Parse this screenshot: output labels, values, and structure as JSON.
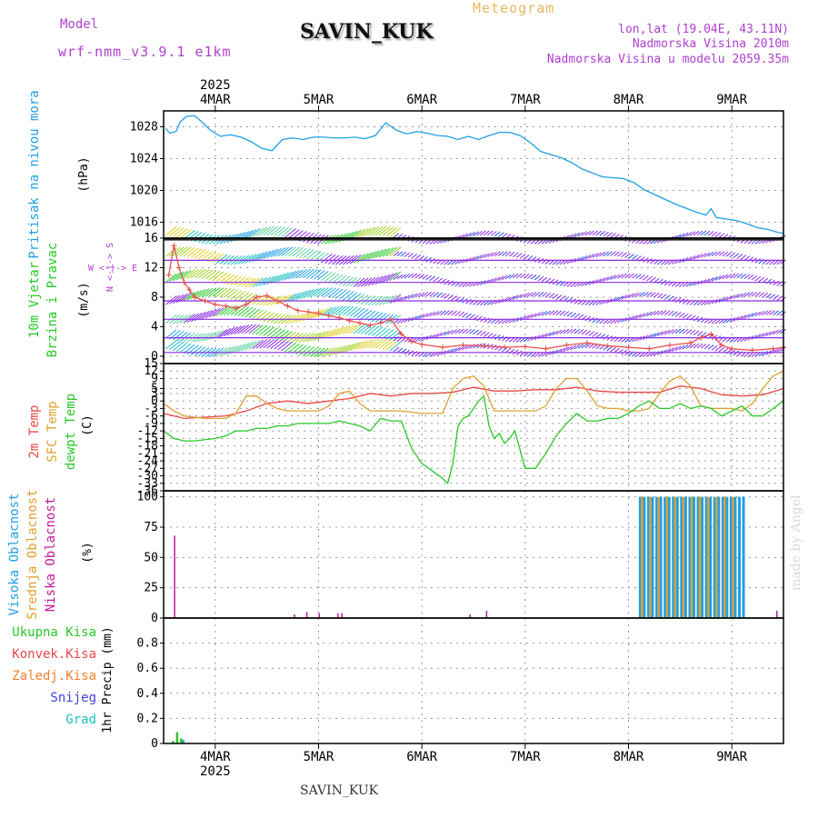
{
  "header": {
    "model_label": "Model",
    "model_name": "wrf-nmm_v3.9.1 e1km",
    "station": "SAVIN_KUK",
    "title": "Meteogram",
    "coords": "lon,lat (19.04E, 43.11N)",
    "elevation": "Nadmorska Visina 2010m",
    "model_elevation": "Nadmorska Visina u modelu 2059.35m",
    "credit": "made by Angel",
    "footer_station": "SAVIN_KUK"
  },
  "colors": {
    "pressure": "#1ea0e6",
    "t2m": "#e84848",
    "sfc": "#e0a030",
    "dewpt": "#28c828",
    "cloud_high": "#1ea0e6",
    "cloud_mid": "#e0a030",
    "cloud_low": "#c0189a",
    "magenta_text": "#b040d0",
    "meteogram_title": "#e8b860",
    "wind_purple": "#8a2be2",
    "wind_blue": "#2050e0",
    "wind_gust": "#e84848",
    "precip_total": "#28c828",
    "precip_conv": "#e84848",
    "precip_frozen": "#f08030",
    "precip_snow": "#4040e0",
    "precip_grad": "#20c0c0"
  },
  "time_axis": {
    "year": "2025",
    "ticks": [
      "4MAR",
      "5MAR",
      "6MAR",
      "7MAR",
      "8MAR",
      "9MAR"
    ]
  },
  "panels": {
    "pressure": {
      "label": "Pritisak na nivou mora",
      "unit": "(hPa)"
    },
    "wind": {
      "label1": "10m Vjetar",
      "label2": "Brzina i Pravac",
      "unit": "(m/s)",
      "compass": "W <-|-> E",
      "compass_v": "N <-|-> S"
    },
    "temp": {
      "label1": "2m Temp",
      "label2": "SFC Temp",
      "label3": "dewpt Temp",
      "unit": "(C)"
    },
    "cloud": {
      "label1": "Visoka Oblacnost",
      "label2": "Srednja Oblacnost",
      "label3": "Niska Oblacnost",
      "unit": "(%)"
    },
    "precip": {
      "items": [
        "Ukupna Kisa",
        "Konvek.Kisa",
        "Zaledj.Kisa",
        "Snijeg",
        "Grad"
      ],
      "unit": "1hr Precip (mm)"
    }
  },
  "chart_data": [
    {
      "type": "line",
      "name": "pressure",
      "ylabel": "Pritisak na nivou mora (hPa)",
      "ylim": [
        1014,
        1030
      ],
      "yticks": [
        1016,
        1020,
        1024,
        1028
      ],
      "xlim": [
        3.5,
        9.5
      ],
      "grid": true,
      "series": [
        {
          "x": [
            3.52,
            3.56,
            3.62,
            3.66,
            3.72,
            3.8,
            3.88,
            3.95,
            4.05,
            4.15,
            4.25,
            4.35,
            4.45,
            4.55,
            4.65,
            4.75,
            4.85,
            4.95,
            5.05,
            5.15,
            5.25,
            5.35,
            5.45,
            5.55,
            5.65,
            5.75,
            5.85,
            5.95,
            6.05,
            6.15,
            6.25,
            6.35,
            6.45,
            6.55,
            6.65,
            6.75,
            6.85,
            6.95,
            7.05,
            7.15,
            7.25,
            7.35,
            7.45,
            7.55,
            7.65,
            7.75,
            7.85,
            7.95,
            8.05,
            8.15,
            8.25,
            8.35,
            8.45,
            8.55,
            8.65,
            8.75,
            8.8,
            8.85,
            8.95,
            9.05,
            9.15,
            9.25,
            9.35,
            9.45,
            9.5
          ],
          "values": [
            1027.8,
            1027.2,
            1027.4,
            1028.6,
            1029.3,
            1029.4,
            1028.5,
            1027.6,
            1026.8,
            1027.0,
            1026.7,
            1026.1,
            1025.3,
            1025.0,
            1026.4,
            1026.6,
            1026.4,
            1026.7,
            1026.7,
            1026.6,
            1026.6,
            1026.7,
            1026.5,
            1026.9,
            1028.5,
            1027.6,
            1027.1,
            1027.4,
            1027.2,
            1026.9,
            1026.8,
            1026.4,
            1026.8,
            1026.4,
            1026.9,
            1027.3,
            1027.3,
            1026.9,
            1026.0,
            1024.9,
            1024.5,
            1024.1,
            1023.5,
            1022.7,
            1022.2,
            1021.7,
            1021.6,
            1021.5,
            1021.0,
            1020.1,
            1019.5,
            1018.9,
            1018.3,
            1017.8,
            1017.3,
            1016.9,
            1017.7,
            1016.6,
            1016.4,
            1016.2,
            1015.8,
            1015.3,
            1015.1,
            1014.7,
            1014.6
          ]
        }
      ]
    },
    {
      "type": "line",
      "name": "wind",
      "ylabel": "10m Vjetar Brzina i Pravac (m/s)",
      "ylim": [
        -1,
        16
      ],
      "yticks": [
        0,
        4,
        8,
        12,
        16
      ],
      "xlim": [
        3.5,
        9.5
      ],
      "grid": true,
      "series": [
        {
          "x": [
            3.55,
            3.6,
            3.65,
            3.7,
            3.75,
            3.8,
            3.9,
            4.0,
            4.1,
            4.2,
            4.3,
            4.4,
            4.5,
            4.6,
            4.7,
            4.8,
            4.9,
            5.0,
            5.1,
            5.2,
            5.3,
            5.4,
            5.5,
            5.6,
            5.7,
            5.8,
            5.9,
            6.0,
            6.2,
            6.4,
            6.6,
            6.8,
            7.0,
            7.2,
            7.4,
            7.6,
            7.8,
            8.0,
            8.2,
            8.4,
            8.6,
            8.7,
            8.8,
            8.9,
            9.0,
            9.2,
            9.4,
            9.5
          ],
          "values": [
            11,
            15,
            12,
            10,
            9,
            8,
            7.5,
            7,
            6.8,
            6.5,
            7,
            8,
            8.2,
            7.5,
            6.8,
            6.2,
            6,
            5.8,
            5.5,
            5.2,
            4.8,
            4.5,
            4.2,
            4.5,
            5,
            3,
            2,
            1.6,
            1.2,
            1.5,
            1.4,
            1.2,
            1.3,
            1.0,
            1.5,
            1.8,
            1.4,
            1.2,
            1.0,
            1.5,
            1.8,
            2.5,
            3,
            1.5,
            1.0,
            0.8,
            1.0,
            1.2
          ]
        }
      ]
    },
    {
      "type": "line",
      "name": "temperature",
      "ylabel": "2m Temp / SFC Temp / dewpt Temp (C)",
      "ylim": [
        -36,
        15
      ],
      "yticks": [
        -36,
        -33,
        -30,
        -27,
        -24,
        -21,
        -18,
        -15,
        -12,
        -9,
        -6,
        -3,
        0,
        3,
        5,
        9,
        12,
        15
      ],
      "xlim": [
        3.5,
        9.5
      ],
      "grid": true,
      "series": [
        {
          "name": "2m Temp",
          "x": [
            3.5,
            3.7,
            3.9,
            4.1,
            4.3,
            4.5,
            4.7,
            4.9,
            5.1,
            5.3,
            5.5,
            5.7,
            5.9,
            6.1,
            6.3,
            6.5,
            6.7,
            6.9,
            7.1,
            7.3,
            7.5,
            7.7,
            7.9,
            8.1,
            8.3,
            8.5,
            8.7,
            8.9,
            9.1,
            9.3,
            9.5
          ],
          "values": [
            -5,
            -7,
            -6.5,
            -6,
            -4,
            -1,
            0,
            -1,
            0,
            1,
            3,
            2,
            3,
            3,
            3.5,
            5.5,
            4,
            4,
            4.5,
            4.5,
            5.5,
            4,
            3.5,
            3.5,
            3.5,
            6,
            5,
            2.5,
            2,
            2.5,
            5
          ]
        },
        {
          "name": "SFC Temp",
          "x": [
            3.5,
            3.6,
            3.7,
            3.8,
            3.9,
            4.0,
            4.1,
            4.2,
            4.3,
            4.4,
            4.5,
            4.6,
            4.7,
            4.8,
            4.9,
            5.0,
            5.1,
            5.2,
            5.3,
            5.4,
            5.5,
            5.6,
            5.7,
            5.8,
            5.9,
            6.0,
            6.1,
            6.2,
            6.3,
            6.4,
            6.5,
            6.6,
            6.7,
            6.8,
            6.9,
            7.0,
            7.1,
            7.2,
            7.3,
            7.4,
            7.5,
            7.6,
            7.7,
            7.8,
            7.9,
            8.0,
            8.1,
            8.2,
            8.3,
            8.4,
            8.5,
            8.6,
            8.7,
            8.8,
            8.9,
            9.0,
            9.1,
            9.2,
            9.3,
            9.4,
            9.5
          ],
          "values": [
            -1,
            -4,
            -6,
            -6.5,
            -7,
            -7,
            -7,
            -5,
            2,
            2,
            -1,
            -3,
            -4,
            -4,
            -4,
            -4,
            -2,
            3,
            4,
            -1,
            -4,
            -4,
            -4,
            -4,
            -4.5,
            -5,
            -5,
            -5,
            5,
            9,
            10,
            6,
            -4,
            -4,
            -4,
            -4,
            -4,
            -2,
            5,
            9,
            9,
            4,
            -2,
            -3,
            -3,
            -4,
            -4,
            -3,
            3,
            8,
            10,
            6,
            -2,
            -3,
            -3,
            -3,
            -4,
            -1,
            5,
            10,
            12
          ]
        },
        {
          "name": "dewpt Temp",
          "x": [
            3.5,
            3.6,
            3.7,
            3.8,
            3.9,
            4.0,
            4.1,
            4.2,
            4.3,
            4.4,
            4.5,
            4.6,
            4.7,
            4.8,
            4.9,
            5.0,
            5.1,
            5.2,
            5.3,
            5.4,
            5.5,
            5.6,
            5.7,
            5.8,
            5.9,
            6.0,
            6.1,
            6.2,
            6.25,
            6.3,
            6.35,
            6.4,
            6.45,
            6.5,
            6.55,
            6.6,
            6.65,
            6.7,
            6.75,
            6.8,
            6.85,
            6.9,
            7.0,
            7.1,
            7.2,
            7.3,
            7.4,
            7.5,
            7.6,
            7.7,
            7.8,
            7.9,
            8.0,
            8.1,
            8.2,
            8.3,
            8.4,
            8.5,
            8.6,
            8.7,
            8.8,
            8.9,
            9.0,
            9.1,
            9.2,
            9.3,
            9.4,
            9.5
          ],
          "values": [
            -12,
            -15,
            -16,
            -16,
            -15.5,
            -15,
            -14,
            -12,
            -12,
            -11,
            -11,
            -10,
            -10,
            -9,
            -9,
            -9,
            -9,
            -8,
            -9,
            -10,
            -12,
            -7,
            -8,
            -8,
            -19,
            -25,
            -28,
            -31,
            -33,
            -25,
            -10,
            -7,
            -6,
            -3,
            0,
            2,
            -10,
            -15,
            -13,
            -17,
            -15,
            -12,
            -27,
            -27,
            -21,
            -14,
            -9,
            -5,
            -8,
            -8,
            -7,
            -7,
            -5,
            -2,
            0,
            -3,
            -3,
            -1,
            -3,
            -2,
            -3,
            -6,
            -4,
            -2,
            -6,
            -6,
            -3,
            0
          ]
        }
      ]
    },
    {
      "type": "bar",
      "name": "cloud_cover",
      "ylabel": "Oblacnost (%)",
      "ylim": [
        0,
        105
      ],
      "yticks": [
        0,
        25,
        50,
        75,
        100
      ],
      "xlim": [
        3.5,
        9.5
      ],
      "grid": true,
      "series": [
        {
          "name": "Niska Oblacnost",
          "x": [
            3.6,
            4.76,
            4.88,
            5.0,
            5.18,
            5.22,
            6.46,
            6.62,
            9.43
          ],
          "values": [
            68,
            3,
            5,
            4,
            4,
            4,
            3,
            6,
            6
          ]
        },
        {
          "name": "Visoka Oblacnost",
          "x": [
            8.1,
            8.14,
            8.18,
            8.22,
            8.26,
            8.3,
            8.34,
            8.38,
            8.42,
            8.46,
            8.5,
            8.54,
            8.58,
            8.62,
            8.66,
            8.7,
            8.74,
            8.78,
            8.82,
            8.86,
            8.9,
            8.94,
            8.98,
            9.02,
            9.06,
            9.1
          ],
          "values": [
            100,
            100,
            100,
            100,
            100,
            100,
            100,
            100,
            100,
            100,
            100,
            100,
            100,
            100,
            100,
            100,
            100,
            100,
            100,
            100,
            100,
            100,
            100,
            100,
            100,
            100
          ]
        },
        {
          "name": "Srednja Oblacnost",
          "x": [
            8.12,
            8.2,
            8.28,
            8.36,
            8.44,
            8.52,
            8.6,
            8.68,
            8.76,
            8.84,
            8.92,
            9.0
          ],
          "values": [
            100,
            100,
            100,
            100,
            100,
            100,
            100,
            100,
            100,
            100,
            100,
            100
          ]
        }
      ]
    },
    {
      "type": "bar",
      "name": "precipitation",
      "ylabel": "1hr Precip (mm)",
      "ylim": [
        0,
        1.0
      ],
      "yticks": [
        0,
        0.2,
        0.4,
        0.6,
        0.8
      ],
      "xlim": [
        3.5,
        9.5
      ],
      "grid": true,
      "series": [
        {
          "name": "Ukupna Kisa",
          "x": [
            3.58,
            3.62,
            3.66
          ],
          "values": [
            0.02,
            0.09,
            0.04
          ]
        },
        {
          "name": "Grad",
          "x": [
            3.68
          ],
          "values": [
            0.03
          ]
        }
      ]
    }
  ]
}
